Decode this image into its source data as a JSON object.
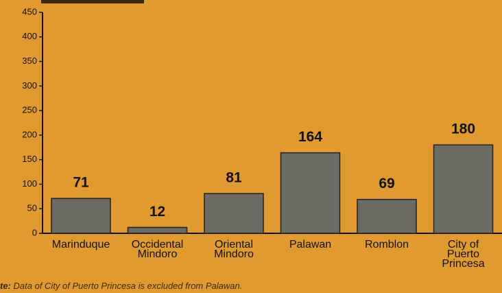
{
  "chart_data": {
    "type": "bar",
    "categories": [
      "Marinduque",
      "Occidental\nMindoro",
      "Oriental\nMindoro",
      "Palawan",
      "Romblon",
      "City of\nPuerto\nPrincesa"
    ],
    "values": [
      71,
      12,
      81,
      164,
      69,
      180
    ],
    "color": "#6b6b63",
    "ylim": [
      0,
      450
    ],
    "yticks": [
      0,
      50,
      100,
      150,
      200,
      250,
      300,
      350,
      400,
      450
    ],
    "note_label": "te:",
    "note": "Data of City of Puerto Princesa is excluded from Palawan."
  }
}
